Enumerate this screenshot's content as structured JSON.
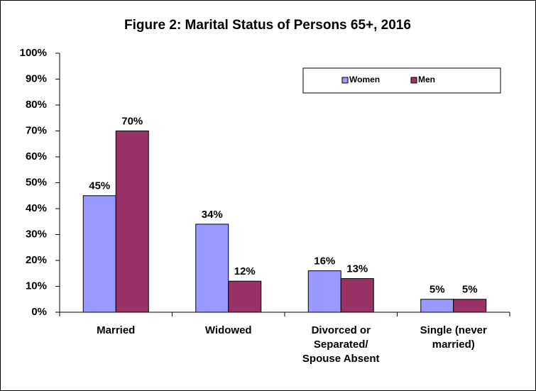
{
  "chart_data": {
    "type": "bar",
    "title": "Figure 2: Marital Status of Persons 65+, 2016",
    "categories": [
      "Married",
      "Widowed",
      "Divorced or Separated/ Spouse Absent",
      "Single (never married)"
    ],
    "series": [
      {
        "name": "Women",
        "color": "#9999ff",
        "values": [
          45,
          34,
          16,
          5
        ],
        "value_labels": [
          "45%",
          "34%",
          "16%",
          "5%"
        ]
      },
      {
        "name": "Men",
        "color": "#993366",
        "values": [
          70,
          12,
          13,
          5
        ],
        "value_labels": [
          "70%",
          "12%",
          "13%",
          "5%"
        ]
      }
    ],
    "ylim": [
      0,
      100
    ],
    "yticks": [
      {
        "value": 0,
        "label": "0%"
      },
      {
        "value": 10,
        "label": "10%"
      },
      {
        "value": 20,
        "label": "20%"
      },
      {
        "value": 30,
        "label": "30%"
      },
      {
        "value": 40,
        "label": "40%"
      },
      {
        "value": 50,
        "label": "50%"
      },
      {
        "value": 60,
        "label": "60%"
      },
      {
        "value": 70,
        "label": "70%"
      },
      {
        "value": 80,
        "label": "80%"
      },
      {
        "value": 90,
        "label": "90%"
      },
      {
        "value": 100,
        "label": "100%"
      }
    ],
    "grid": false,
    "legend": "top-right"
  }
}
